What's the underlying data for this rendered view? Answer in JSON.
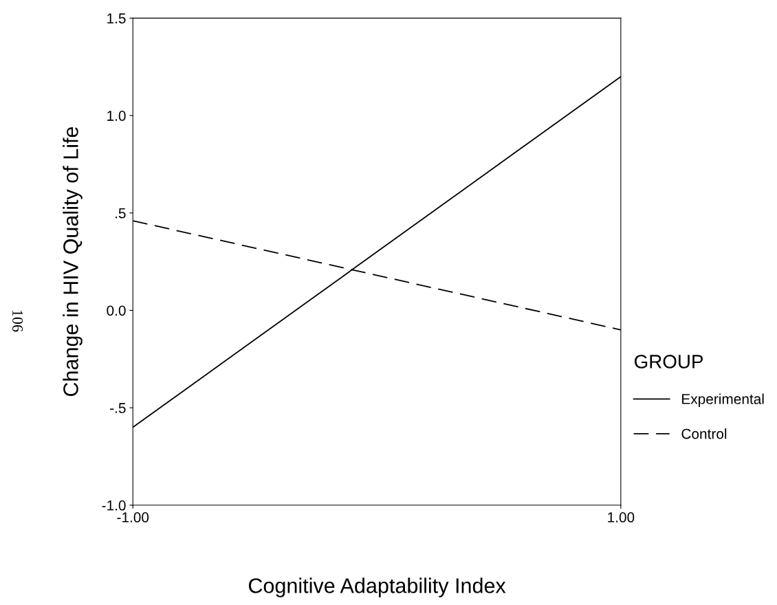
{
  "chart_data": {
    "type": "line",
    "xlabel": "Cognitive Adaptability Index",
    "ylabel": "Change in HIV Quality of Life",
    "legend_title": "GROUP",
    "legend": "right",
    "x": [
      -1,
      1
    ],
    "series": [
      {
        "name": "Experimental",
        "color": "#000000",
        "values": [
          -0.6,
          1.2
        ],
        "line_style": "solid"
      },
      {
        "name": "Control",
        "color": "#000000",
        "values": [
          0.46,
          -0.1
        ],
        "line_style": "dashed"
      }
    ],
    "xlim": [
      -1,
      1
    ],
    "xticks": [
      {
        "value": -1,
        "label": "-1.00"
      },
      {
        "value": 1,
        "label": "1.00"
      }
    ],
    "ylim": [
      -1,
      1.5
    ],
    "yticks": [
      {
        "value": -1,
        "label": "-1.0"
      },
      {
        "value": -0.5,
        "label": "-.5"
      },
      {
        "value": 0,
        "label": "0.0"
      },
      {
        "value": 0.5,
        "label": ".5"
      },
      {
        "value": 1,
        "label": "1.0"
      },
      {
        "value": 1.5,
        "label": "1.5"
      }
    ],
    "grid": false,
    "marker": "none",
    "annotations": [
      "106"
    ]
  }
}
